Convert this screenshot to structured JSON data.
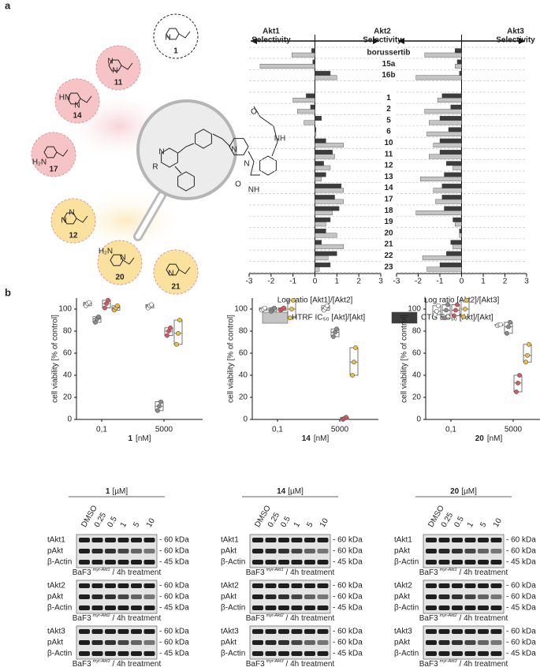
{
  "panel_labels": [
    "a",
    "b"
  ],
  "scaffold": {
    "atoms": [
      "R",
      "N",
      "N",
      "N",
      "O",
      "NH",
      "O",
      "NH"
    ],
    "substituents": [
      {
        "label": "1",
        "atoms": [
          "H"
        ]
      },
      {
        "label": "11",
        "atoms": [
          "N",
          "N"
        ]
      },
      {
        "label": "14",
        "atoms": [
          "HN",
          "N"
        ]
      },
      {
        "label": "17",
        "atoms": [
          "H₂N"
        ]
      },
      {
        "label": "12",
        "atoms": [
          "N",
          "N"
        ]
      },
      {
        "label": "20",
        "atoms": [
          "H₂N",
          "N"
        ]
      },
      {
        "label": "21",
        "atoms": [
          "N"
        ]
      }
    ]
  },
  "chart_data": [
    {
      "type": "bar",
      "orientation": "horizontal",
      "header_left": {
        "lines": [
          "Akt1",
          "Selectivity"
        ],
        "color": "#8a8a8a"
      },
      "header_right": {
        "lines": [
          "Akt2",
          "Selectivity"
        ],
        "color": "#a3303c"
      },
      "xlabel": "Log ratio [Akt1]/[Akt2]",
      "xlim": [
        -3,
        3
      ],
      "xticks": [
        -3,
        -2,
        -1,
        0,
        1,
        2,
        3
      ],
      "categories": [
        "borussertib",
        "15a",
        "16b",
        null,
        "1",
        "2",
        "5",
        "6",
        "10",
        "11",
        "12",
        "13",
        "14",
        "17",
        "18",
        "19",
        "20",
        "21",
        "22",
        "23"
      ],
      "series": [
        {
          "name": "HTRF IC₅₀ [Akt]/[Akt]",
          "color": "#c4c4c4",
          "values": [
            -1.05,
            -2.5,
            1.0,
            null,
            -1.0,
            -0.8,
            -0.5,
            0.05,
            1.3,
            0.9,
            0.7,
            0.3,
            1.3,
            1.3,
            0.8,
            0.5,
            1.0,
            1.3,
            0.6,
            0.2
          ]
        },
        {
          "name": "CTG EC₅₀ [Akt]/[Akt]",
          "color": "#3c3c3c",
          "values": [
            -0.15,
            -0.1,
            0.7,
            null,
            -0.4,
            -0.2,
            0.3,
            0.05,
            0.5,
            0.8,
            0.4,
            0.5,
            1.2,
            0.9,
            1.1,
            0.7,
            0.5,
            0.3,
            1.0,
            0.7
          ]
        }
      ]
    },
    {
      "type": "bar",
      "orientation": "horizontal",
      "header_right": {
        "lines": [
          "Akt3",
          "Selectivity"
        ],
        "color": "#b58d2c"
      },
      "xlabel": "Log ratio [Akt2]/[Akt3]",
      "xlim": [
        -3,
        3
      ],
      "xticks": [
        -3,
        -2,
        -1,
        0,
        1,
        2,
        3
      ],
      "series": [
        {
          "color": "#c4c4c4",
          "values": [
            -1.7,
            -0.3,
            -2.1,
            null,
            -1.1,
            -1.7,
            -1.5,
            -1.6,
            -1.3,
            -1.5,
            -0.4,
            -1.9,
            -1.3,
            -1.2,
            -2.1,
            -0.3,
            -0.1,
            -0.4,
            -1.8,
            -1.6
          ]
        },
        {
          "color": "#3c3c3c",
          "values": [
            -0.3,
            -0.2,
            -0.1,
            null,
            -0.9,
            -0.5,
            -1.0,
            -0.6,
            -1.0,
            -1.0,
            -0.7,
            -0.8,
            -0.9,
            -0.9,
            -0.8,
            -0.4,
            -0.1,
            -0.5,
            -0.7,
            -1.0
          ]
        }
      ]
    },
    {
      "type": "box",
      "compound": "1",
      "x_unit": "[nM]",
      "ylabel": "cell viability [% of control]",
      "categories": [
        "0,1",
        "5000"
      ],
      "ylim": [
        0,
        110
      ],
      "yticks": [
        0,
        20,
        40,
        60,
        80,
        100
      ],
      "series": [
        {
          "color": "#ffffff",
          "values": [
            [
              103,
              105,
              106
            ],
            [
              101,
              103,
              104
            ]
          ]
        },
        {
          "color": "#8c8c8c",
          "values": [
            [
              88,
              91,
              93
            ],
            [
              8,
              12,
              16
            ]
          ]
        },
        {
          "color": "#e2525c",
          "values": [
            [
              101,
              105,
              108
            ],
            [
              76,
              80,
              83
            ]
          ]
        },
        {
          "color": "#f4bf32",
          "values": [
            [
              99,
              101,
              103
            ],
            [
              68,
              78,
              90
            ]
          ]
        }
      ]
    },
    {
      "type": "box",
      "compound": "14",
      "x_unit": "[nM]",
      "ylabel": "cell viability [% of control]",
      "categories": [
        "0,1",
        "5000"
      ],
      "ylim": [
        0,
        110
      ],
      "yticks": [
        0,
        20,
        40,
        60,
        80,
        100
      ],
      "series": [
        {
          "color": "#ffffff",
          "values": [
            [
              99,
              100,
              101
            ],
            [
              99,
              101,
              103
            ]
          ]
        },
        {
          "color": "#8c8c8c",
          "values": [
            [
              98,
              100,
              101
            ],
            [
              75,
              79,
              82
            ]
          ]
        },
        {
          "color": "#e2525c",
          "values": [
            [
              99,
              100,
              101
            ],
            [
              0,
              1,
              2
            ]
          ]
        },
        {
          "color": "#f4bf32",
          "values": [
            [
              92,
              100,
              108
            ],
            [
              40,
              52,
              65
            ]
          ]
        }
      ]
    },
    {
      "type": "box",
      "compound": "20",
      "x_unit": "[nM]",
      "ylabel": "cell viability [% of control]",
      "categories": [
        "0,1",
        "5000"
      ],
      "ylim": [
        0,
        110
      ],
      "yticks": [
        0,
        20,
        40,
        60,
        80,
        100
      ],
      "series": [
        {
          "color": "#ffffff",
          "values": [
            [
              95,
              98,
              103
            ],
            [
              85,
              86,
              86
            ]
          ]
        },
        {
          "color": "#8c8c8c",
          "values": [
            [
              92,
              99,
              104
            ],
            [
              78,
              84,
              88
            ]
          ]
        },
        {
          "color": "#e2525c",
          "values": [
            [
              94,
              99,
              104
            ],
            [
              25,
              33,
              40
            ]
          ]
        },
        {
          "color": "#f4bf32",
          "values": [
            [
              93,
              100,
              108
            ],
            [
              52,
              58,
              68
            ]
          ]
        }
      ]
    }
  ],
  "blots": [
    {
      "compound": "1",
      "unit": "[µM]",
      "lanes": [
        "DMSO",
        "0.25",
        "0.5",
        "1",
        "5",
        "10"
      ],
      "panels": [
        {
          "rows": [
            {
              "label": "tAkt1",
              "kda": "- 60 kDa"
            },
            {
              "label": "pAkt",
              "kda": "- 60 kDa"
            },
            {
              "label": "β-Actin",
              "kda": "- 45 kDa"
            }
          ],
          "cell": "BaF3",
          "isoform": "myr-Akt1",
          "treatment": "/ 4h treatment"
        },
        {
          "rows": [
            {
              "label": "tAkt2",
              "kda": "- 60 kDa"
            },
            {
              "label": "pAkt",
              "kda": "- 60 kDa"
            },
            {
              "label": "β-Actin",
              "kda": "- 45 kDa"
            }
          ],
          "cell": "BaF3",
          "isoform": "myr-Akt2",
          "treatment": "/ 4h treatment"
        },
        {
          "rows": [
            {
              "label": "tAkt3",
              "kda": "- 60 kDa"
            },
            {
              "label": "pAkt",
              "kda": "- 60 kDa"
            },
            {
              "label": "β-Actin",
              "kda": "- 45 kDa"
            }
          ],
          "cell": "BaF3",
          "isoform": "myr-Akt3",
          "treatment": "/ 4h treatment"
        }
      ]
    },
    {
      "compound": "14",
      "unit": "[µM]",
      "lanes": [
        "DMSO",
        "0.25",
        "0.5",
        "1",
        "5",
        "10"
      ],
      "panels": [
        {
          "rows": [
            {
              "label": "tAkt1",
              "kda": "- 60 kDa"
            },
            {
              "label": "pAkt",
              "kda": "- 60 kDa"
            },
            {
              "label": "β-Actin",
              "kda": "- 45 kDa"
            }
          ],
          "cell": "BaF3",
          "isoform": "myr-Akt1",
          "treatment": "/ 4h treatment"
        },
        {
          "rows": [
            {
              "label": "tAkt2",
              "kda": "- 60 kDa"
            },
            {
              "label": "pAkt",
              "kda": "- 60 kDa"
            },
            {
              "label": "β-Actin",
              "kda": "- 45 kDa"
            }
          ],
          "cell": "BaF3",
          "isoform": "myr-Akt2",
          "treatment": "/ 4h treatment"
        },
        {
          "rows": [
            {
              "label": "tAkt3",
              "kda": "- 60 kDa"
            },
            {
              "label": "pAkt",
              "kda": "- 60 kDa"
            },
            {
              "label": "β-Actin",
              "kda": "- 45 kDa"
            }
          ],
          "cell": "BaF3",
          "isoform": "myr-Akt3",
          "treatment": "/ 4h treatment"
        }
      ]
    },
    {
      "compound": "20",
      "unit": "[µM]",
      "lanes": [
        "DMSO",
        "0.25",
        "0.5",
        "1",
        "5",
        "10"
      ],
      "panels": [
        {
          "rows": [
            {
              "label": "tAkt1",
              "kda": "- 60 kDa"
            },
            {
              "label": "pAkt",
              "kda": "- 60 kDa"
            },
            {
              "label": "β-Actin",
              "kda": "- 45 kDa"
            }
          ],
          "cell": "BaF3",
          "isoform": "myr-Akt1",
          "treatment": "/ 4h treatment"
        },
        {
          "rows": [
            {
              "label": "tAkt2",
              "kda": "- 60 kDa"
            },
            {
              "label": "pAkt",
              "kda": "- 60 kDa"
            },
            {
              "label": "β-Actin",
              "kda": "- 45 kDa"
            }
          ],
          "cell": "BaF3",
          "isoform": "myr-Akt2",
          "treatment": "/ 4h treatment"
        },
        {
          "rows": [
            {
              "label": "tAkt3",
              "kda": "- 60 kDa"
            },
            {
              "label": "pAkt",
              "kda": "- 60 kDa"
            },
            {
              "label": "β-Actin",
              "kda": "- 45 kDa"
            }
          ],
          "cell": "BaF3",
          "isoform": "myr-Akt3",
          "treatment": "/ 4h treatment"
        }
      ]
    }
  ]
}
